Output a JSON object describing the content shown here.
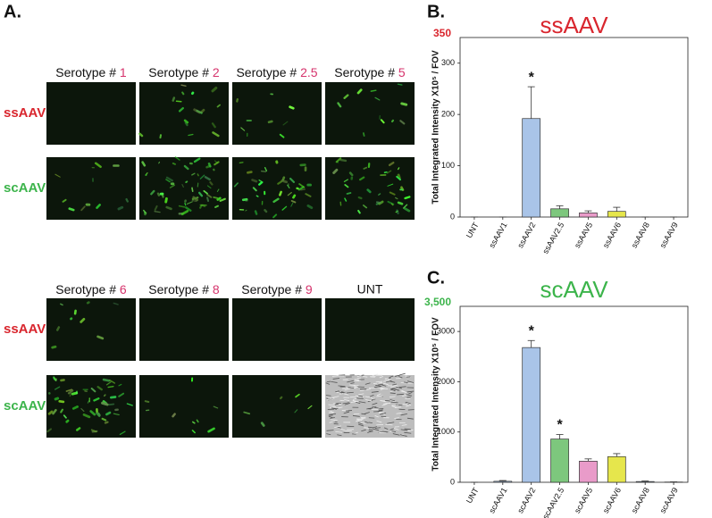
{
  "figure": {
    "panel_a_label": "A.",
    "blocks": [
      {
        "headers": [
          {
            "prefix": "Serotype # ",
            "number": "1"
          },
          {
            "prefix": "Serotype # ",
            "number": "2"
          },
          {
            "prefix": "Serotype # ",
            "number": "2.5"
          },
          {
            "prefix": "Serotype # ",
            "number": "5"
          }
        ],
        "row_labels": [
          "ssAAV",
          "scAAV"
        ]
      },
      {
        "headers": [
          {
            "prefix": "Serotype # ",
            "number": "6"
          },
          {
            "prefix": "Serotype # ",
            "number": "8"
          },
          {
            "prefix": "Serotype # ",
            "number": "9"
          },
          {
            "text": "UNT"
          }
        ],
        "row_labels": [
          "ssAAV",
          "scAAV"
        ]
      }
    ]
  },
  "chart_data": [
    {
      "type": "bar",
      "panel": "B.",
      "title": "ssAAV",
      "title_color": "#d9262e",
      "y_label": "Total Integrated Intensity X10⁵ / FOV",
      "categories": [
        "UNT",
        "ssAAV1",
        "ssAAV2",
        "ssAAV2.5",
        "ssAAV5",
        "ssAAV6",
        "ssAAV8",
        "ssAAV9"
      ],
      "values": [
        0,
        0,
        192,
        16,
        8,
        11,
        0,
        0
      ],
      "errors": [
        0,
        0,
        62,
        6,
        4,
        8,
        0,
        0
      ],
      "colors": [
        "#a9c4e8",
        "#a9c4e8",
        "#a9c4e8",
        "#7dc77d",
        "#e99bc9",
        "#e6e64c",
        "#a9c4e8",
        "#a9c4e8"
      ],
      "annotations": [
        {
          "index": 2,
          "text": "*"
        }
      ],
      "ylim": [
        0,
        350
      ],
      "yticks": [
        0,
        100,
        200,
        300,
        350
      ]
    },
    {
      "type": "bar",
      "panel": "C.",
      "title": "scAAV",
      "title_color": "#3cb44b",
      "y_label": "Total Integrated Intensity X10⁵ / FOV",
      "categories": [
        "UNT",
        "scAAV1",
        "scAAV2",
        "scAAV2.5",
        "scAAV5",
        "scAAV6",
        "scAAV8",
        "scAAV9"
      ],
      "values": [
        0,
        20,
        2680,
        860,
        420,
        510,
        15,
        5
      ],
      "errors": [
        0,
        15,
        140,
        90,
        45,
        60,
        10,
        3
      ],
      "colors": [
        "#a9c4e8",
        "#a9c4e8",
        "#a9c4e8",
        "#7dc77d",
        "#e99bc9",
        "#e6e64c",
        "#a9c4e8",
        "#a9c4e8"
      ],
      "annotations": [
        {
          "index": 2,
          "text": "*"
        },
        {
          "index": 3,
          "text": "*"
        }
      ],
      "ylim": [
        0,
        3500
      ],
      "yticks": [
        0,
        1000,
        2000,
        3000,
        {
          "value": 3500,
          "label": "3,500"
        }
      ]
    }
  ]
}
